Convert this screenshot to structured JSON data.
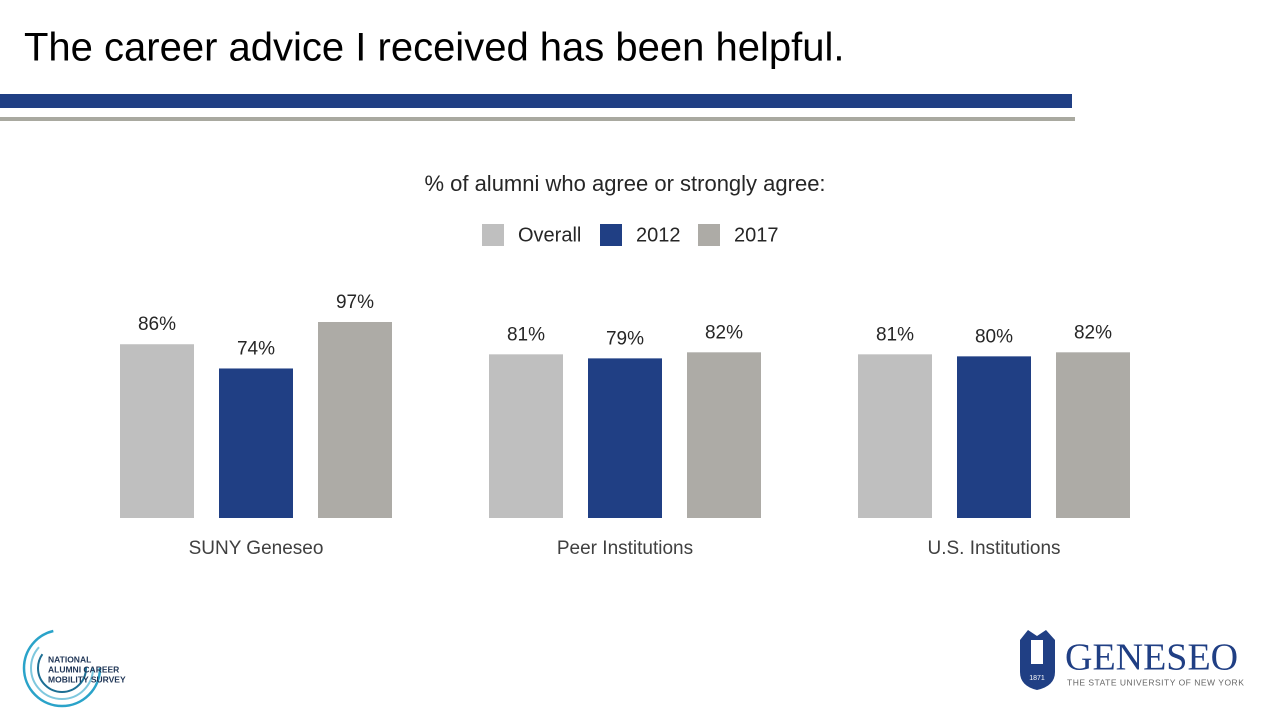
{
  "slide_title": "The career advice I received has been helpful.",
  "chart_data": {
    "type": "bar",
    "title": "% of alumni who agree or strongly agree:",
    "categories": [
      "SUNY Geneseo",
      "Peer Institutions",
      "U.S. Institutions"
    ],
    "series": [
      {
        "name": "Overall",
        "color": "#bfbfbf",
        "values": [
          86,
          81,
          81
        ],
        "value_labels": [
          "86%",
          "81%",
          "81%"
        ]
      },
      {
        "name": "2012",
        "color": "#203f84",
        "values": [
          74,
          79,
          80
        ],
        "value_labels": [
          "74%",
          "79%",
          "80%"
        ]
      },
      {
        "name": "2017",
        "color": "#adaba6",
        "values": [
          97,
          82,
          82
        ],
        "value_labels": [
          "97%",
          "82%",
          "82%"
        ]
      }
    ]
  },
  "logos": {
    "survey_lines": [
      "NATIONAL",
      "ALUMNI CAREER",
      "MOBILITY SURVEY"
    ],
    "university": "GENESEO",
    "university_tagline": "THE STATE UNIVERSITY OF NEW YORK",
    "founded": "1871"
  }
}
